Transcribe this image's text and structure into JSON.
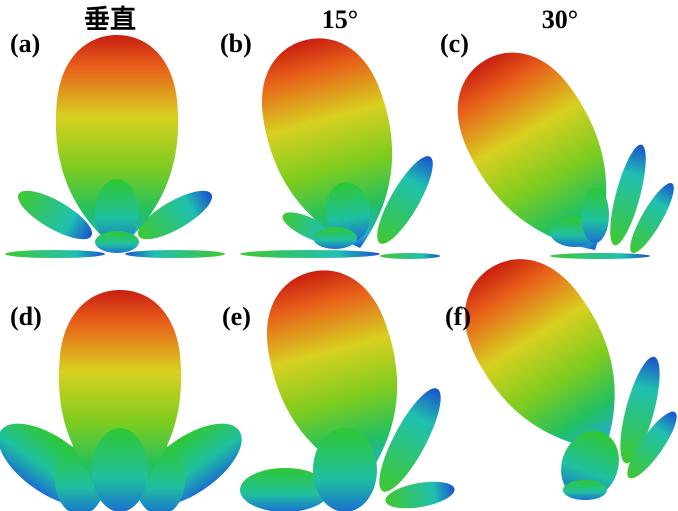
{
  "headers": [
    "垂直",
    "15°",
    "30°"
  ],
  "panels": [
    "(a)",
    "(b)",
    "(c)",
    "(d)",
    "(e)",
    "(f)"
  ]
}
